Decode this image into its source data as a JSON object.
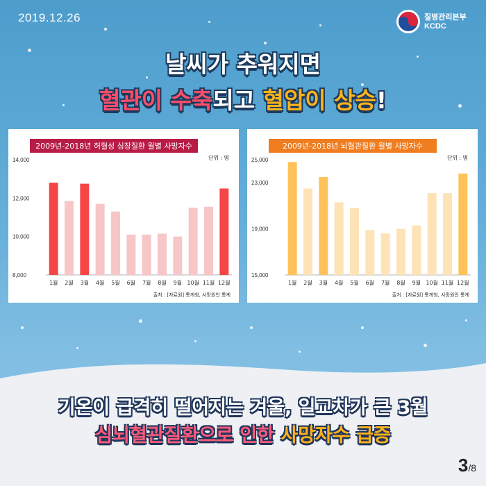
{
  "header": {
    "date": "2019.12.26",
    "org_name": "질병관리본부",
    "org_abbr": "KCDC"
  },
  "headline": {
    "line1": "날씨가 추워지면",
    "line2_part1": "혈관이 수축",
    "line2_part2": "되고 ",
    "line2_part3": "혈압이 상승",
    "line2_part4": "!"
  },
  "footer": {
    "line1": "기온이 급격히 떨어지는 겨울, 일교차가 큰 3월",
    "line2_part1": "심뇌혈관질환으로 인한 ",
    "line2_part2": "사망자수 급증",
    "page_current": "3",
    "page_total": "/8"
  },
  "colors": {
    "heart_strong": "#f64545",
    "heart_light": "#f7c6c6",
    "heart_title_bg": "#b81c45",
    "brain_strong": "#ffc25a",
    "brain_light": "#fde3b5",
    "brain_title_bg": "#f07d1f"
  },
  "chart_data": [
    {
      "type": "bar",
      "title": "2009년-2018년 허혈성 심장질환 월별 사망자수",
      "unit": "단위 : 명",
      "source": "출처 : [자료원] 통계청, 사망원인 통계",
      "categories": [
        "1월",
        "2월",
        "3월",
        "4월",
        "5월",
        "6월",
        "7월",
        "8월",
        "9월",
        "10월",
        "11월",
        "12월"
      ],
      "values": [
        12800,
        11850,
        12750,
        11700,
        11300,
        10100,
        10100,
        10150,
        10000,
        11500,
        11550,
        12500
      ],
      "highlight": [
        true,
        false,
        true,
        false,
        false,
        false,
        false,
        false,
        false,
        false,
        false,
        true
      ],
      "yticks": [
        8000,
        10000,
        12000,
        14000
      ],
      "ytick_labels": [
        "8,000",
        "10,000",
        "12,000",
        "14,000"
      ],
      "ylim": [
        8000,
        14000
      ],
      "grid": false
    },
    {
      "type": "bar",
      "title": "2009년-2018년 뇌혈관질환 월별 사망자수",
      "unit": "단위 : 명",
      "source": "출처 : [자료원] 통계청, 사망원인 통계",
      "categories": [
        "1월",
        "2월",
        "3월",
        "4월",
        "5월",
        "6월",
        "7월",
        "8월",
        "9월",
        "10월",
        "11월",
        "12월"
      ],
      "values": [
        24800,
        22500,
        23500,
        21300,
        20800,
        18900,
        18600,
        19000,
        19300,
        22100,
        22100,
        23800
      ],
      "highlight": [
        true,
        false,
        true,
        false,
        false,
        false,
        false,
        false,
        false,
        false,
        false,
        true
      ],
      "yticks": [
        15000,
        19000,
        23000,
        25000
      ],
      "ytick_labels": [
        "15,000",
        "19,000",
        "23,000",
        "25,000"
      ],
      "ylim": [
        15000,
        25000
      ],
      "grid": false
    }
  ]
}
